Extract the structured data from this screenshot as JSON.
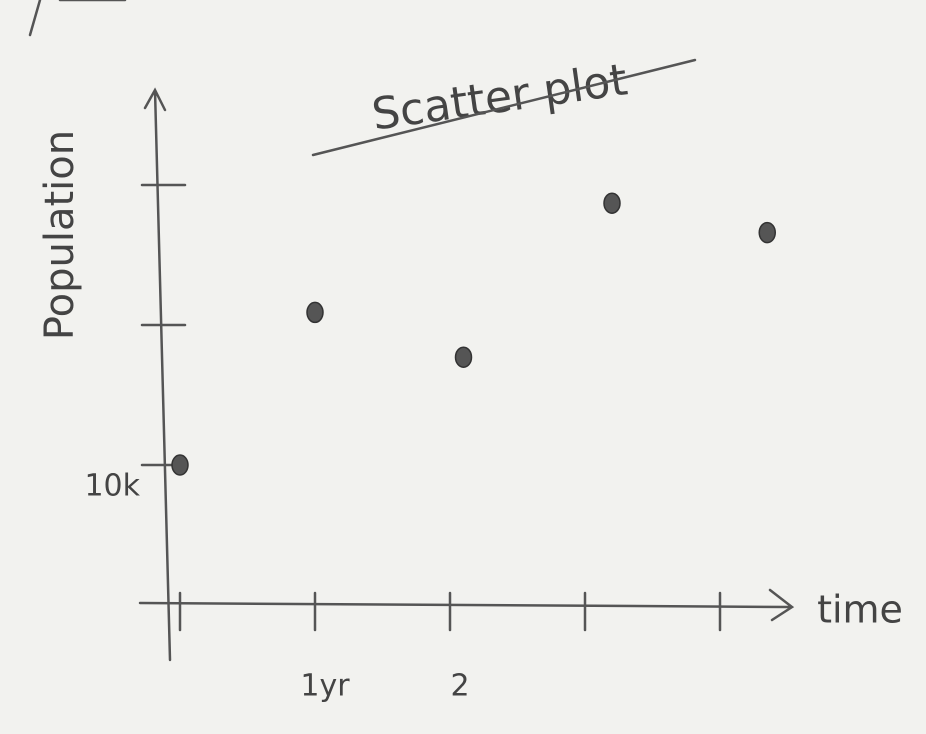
{
  "chart_data": {
    "type": "scatter",
    "title": "Scatter plot",
    "x_label": "time",
    "y_label": "Population",
    "x": [
      0,
      1,
      2.1,
      3.2,
      4.35
    ],
    "values": [
      10000,
      20900,
      17700,
      28700,
      26600
    ],
    "color": "#555555",
    "xlim": [
      0,
      4.6
    ],
    "ylim": [
      0,
      36000
    ],
    "xticks": [
      {
        "value": 0,
        "label": null
      },
      {
        "value": 1,
        "label": "1yr"
      },
      2,
      {
        "value": 3,
        "label": null
      },
      {
        "value": 4,
        "label": null
      }
    ],
    "yticks": [
      {
        "value": 10000,
        "label": "10k"
      },
      {
        "value": 20000,
        "label": null
      },
      {
        "value": 30000,
        "label": null
      }
    ]
  }
}
